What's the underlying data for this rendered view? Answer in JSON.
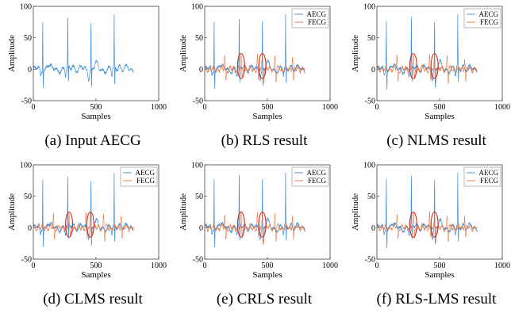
{
  "chart_data": [
    {
      "type": "line",
      "caption": "(a) Input AECG",
      "xlabel": "Samples",
      "ylabel": "Amplitude",
      "xlim": [
        0,
        1000
      ],
      "ylim": [
        -50,
        100
      ],
      "xticks": [
        "0",
        "500",
        "1000"
      ],
      "yticks": [
        "-50",
        "0",
        "50",
        "100"
      ],
      "legend": null,
      "ellipses": [],
      "series": [
        {
          "role": "aecg",
          "color": "#3e8fd6",
          "r_peaks": [
            75,
            275,
            460,
            645
          ],
          "peak": 82,
          "trough": -28,
          "n": 800
        }
      ]
    },
    {
      "type": "line",
      "caption": "(b) RLS result",
      "xlabel": "Samples",
      "ylabel": "Amplitude",
      "xlim": [
        0,
        1000
      ],
      "ylim": [
        -50,
        100
      ],
      "xticks": [
        "0",
        "500",
        "1000"
      ],
      "yticks": [
        "-50",
        "0",
        "50",
        "100"
      ],
      "legend": {
        "placement": "top-right",
        "entries": [
          "AECG",
          "FECG"
        ]
      },
      "ellipses": [
        {
          "cx": 290,
          "cy": 5,
          "rx": 28,
          "ry": 20
        },
        {
          "cx": 460,
          "cy": 5,
          "rx": 28,
          "ry": 20
        }
      ],
      "series": [
        {
          "role": "aecg",
          "color": "#3e8fd6",
          "r_peaks": [
            75,
            275,
            460,
            645
          ],
          "peak": 82,
          "trough": -28,
          "n": 800
        },
        {
          "role": "fecg",
          "color": "#e8743b",
          "f_peaks": [
            160,
            290,
            420,
            460,
            560,
            700
          ],
          "amp": 22,
          "n": 800
        }
      ]
    },
    {
      "type": "line",
      "caption": "(c) NLMS result",
      "xlabel": "Samples",
      "ylabel": "Amplitude",
      "xlim": [
        0,
        1000
      ],
      "ylim": [
        -50,
        100
      ],
      "xticks": [
        "0",
        "500",
        "1000"
      ],
      "yticks": [
        "-50",
        "0",
        "50",
        "100"
      ],
      "legend": {
        "placement": "top-right",
        "entries": [
          "AECG",
          "FECG"
        ]
      },
      "ellipses": [
        {
          "cx": 290,
          "cy": 5,
          "rx": 28,
          "ry": 20
        },
        {
          "cx": 460,
          "cy": 5,
          "rx": 28,
          "ry": 20
        }
      ],
      "series": [
        {
          "role": "aecg",
          "color": "#3e8fd6",
          "r_peaks": [
            75,
            275,
            460,
            645
          ],
          "peak": 82,
          "trough": -28,
          "n": 800
        },
        {
          "role": "fecg",
          "color": "#e8743b",
          "f_peaks": [
            160,
            290,
            420,
            460,
            560,
            700
          ],
          "amp": 22,
          "n": 800
        }
      ]
    },
    {
      "type": "line",
      "caption": "(d) CLMS result",
      "xlabel": "Samples",
      "ylabel": "Amplitude",
      "xlim": [
        0,
        1000
      ],
      "ylim": [
        -50,
        100
      ],
      "xticks": [
        "0",
        "500",
        "1000"
      ],
      "yticks": [
        "-50",
        "0",
        "50",
        "100"
      ],
      "legend": {
        "placement": "top-right",
        "entries": [
          "AECG",
          "FECG"
        ]
      },
      "ellipses": [
        {
          "cx": 285,
          "cy": 5,
          "rx": 28,
          "ry": 20
        },
        {
          "cx": 455,
          "cy": 5,
          "rx": 28,
          "ry": 20
        }
      ],
      "series": [
        {
          "role": "aecg",
          "color": "#3e8fd6",
          "r_peaks": [
            75,
            275,
            460,
            645
          ],
          "peak": 82,
          "trough": -28,
          "n": 800
        },
        {
          "role": "fecg",
          "color": "#e8743b",
          "f_peaks": [
            160,
            285,
            420,
            455,
            560,
            700
          ],
          "amp": 22,
          "n": 800
        }
      ]
    },
    {
      "type": "line",
      "caption": "(e) CRLS result",
      "xlabel": "Samples",
      "ylabel": "Amplitude",
      "xlim": [
        0,
        1000
      ],
      "ylim": [
        -50,
        100
      ],
      "xticks": [
        "0",
        "500",
        "1000"
      ],
      "yticks": [
        "-50",
        "0",
        "50",
        "100"
      ],
      "legend": {
        "placement": "top-right",
        "entries": [
          "AECG",
          "FECG"
        ]
      },
      "ellipses": [
        {
          "cx": 290,
          "cy": 5,
          "rx": 28,
          "ry": 20
        },
        {
          "cx": 460,
          "cy": 5,
          "rx": 28,
          "ry": 20
        }
      ],
      "series": [
        {
          "role": "aecg",
          "color": "#3e8fd6",
          "r_peaks": [
            75,
            275,
            460,
            645
          ],
          "peak": 82,
          "trough": -28,
          "n": 800
        },
        {
          "role": "fecg",
          "color": "#e8743b",
          "f_peaks": [
            160,
            290,
            420,
            460,
            560,
            700
          ],
          "amp": 22,
          "n": 800
        }
      ]
    },
    {
      "type": "line",
      "caption": "(f) RLS-LMS result",
      "xlabel": "Samples",
      "ylabel": "Amplitude",
      "xlim": [
        0,
        1000
      ],
      "ylim": [
        -50,
        100
      ],
      "xticks": [
        "0",
        "500",
        "1000"
      ],
      "yticks": [
        "-50",
        "0",
        "50",
        "100"
      ],
      "legend": {
        "placement": "top-right",
        "entries": [
          "AECG",
          "FECG"
        ]
      },
      "ellipses": [
        {
          "cx": 290,
          "cy": 5,
          "rx": 28,
          "ry": 20
        },
        {
          "cx": 460,
          "cy": 5,
          "rx": 28,
          "ry": 20
        }
      ],
      "series": [
        {
          "role": "aecg",
          "color": "#3e8fd6",
          "r_peaks": [
            75,
            275,
            460,
            645
          ],
          "peak": 82,
          "trough": -28,
          "n": 800
        },
        {
          "role": "fecg",
          "color": "#e8743b",
          "f_peaks": [
            160,
            290,
            420,
            460,
            560,
            700
          ],
          "amp": 22,
          "n": 800
        }
      ]
    }
  ],
  "colors": {
    "aecg": "#3e8fd6",
    "fecg": "#e8743b",
    "ellipse": "#d12a1e",
    "axis": "#444444"
  }
}
